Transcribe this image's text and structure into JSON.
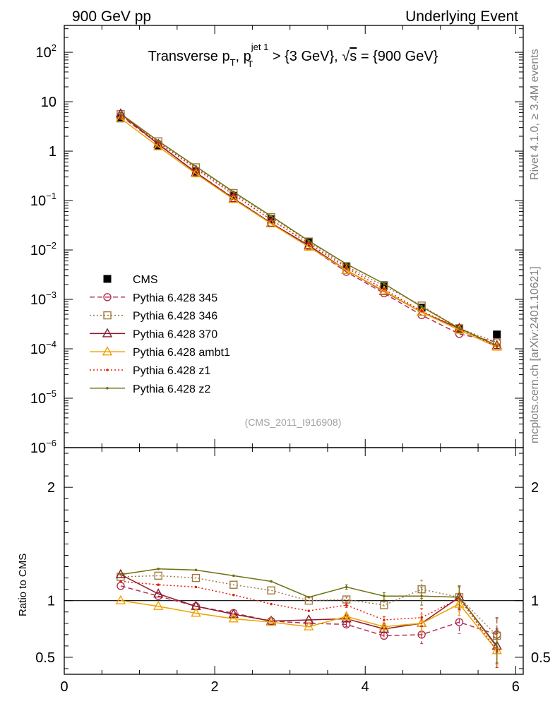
{
  "header": {
    "left": "900 GeV pp",
    "right": "Underlying Event",
    "side_top": "Rivet 4.1.0, ≥ 3.4M events",
    "side_bottom": "mcplots.cern.ch [arXiv:2401.10621]",
    "analysis_id": "(CMS_2011_I916908)"
  },
  "plot_title": {
    "part1": "Transverse p",
    "sub1": "T",
    "part2": ", p",
    "sup2": "jet 1",
    "sub2": "T",
    "part3": " > {3 GeV}, ",
    "sqrt": "√",
    "s": "s",
    "part4": " = {900 GeV}"
  },
  "chart_data": [
    {
      "type": "line",
      "panel": "main",
      "yscale": "log",
      "xlim": [
        0,
        6.1
      ],
      "ylim": [
        1e-06,
        350
      ],
      "y_ticks": [
        {
          "value": 100,
          "mant": "10",
          "exp": "2"
        },
        {
          "value": 10,
          "mant": "10",
          "exp": ""
        },
        {
          "value": 1,
          "mant": "1",
          "exp": ""
        },
        {
          "value": 0.1,
          "mant": "10",
          "exp": "−1"
        },
        {
          "value": 0.01,
          "mant": "10",
          "exp": "−2"
        },
        {
          "value": 0.001,
          "mant": "10",
          "exp": "−3"
        },
        {
          "value": 0.0001,
          "mant": "10",
          "exp": "−4"
        },
        {
          "value": 1e-05,
          "mant": "10",
          "exp": "−5"
        },
        {
          "value": 1e-06,
          "mant": "10",
          "exp": "−6"
        }
      ],
      "x": [
        0.75,
        1.25,
        1.75,
        2.25,
        2.75,
        3.25,
        3.75,
        4.25,
        4.75,
        5.25,
        5.75
      ],
      "series": [
        {
          "name": "CMS",
          "color": "#000000",
          "marker": "filled-square",
          "line": "none",
          "values": [
            4.6,
            1.3,
            0.39,
            0.125,
            0.042,
            0.0148,
            0.0046,
            0.00193,
            0.00068,
            0.00025,
            0.000195
          ]
        },
        {
          "name": "Pythia 6.428 345",
          "color": "#b03050",
          "marker": "open-circle",
          "line": "dashed",
          "values": [
            5.2,
            1.4,
            0.37,
            0.112,
            0.035,
            0.0118,
            0.0036,
            0.00133,
            0.00048,
            0.0002,
            0.000137
          ]
        },
        {
          "name": "Pythia 6.428 346",
          "color": "#a07840",
          "marker": "open-square",
          "line": "dotted",
          "values": [
            5.6,
            1.58,
            0.47,
            0.142,
            0.046,
            0.0148,
            0.0047,
            0.00186,
            0.00075,
            0.00026,
            0.000135
          ]
        },
        {
          "name": "Pythia 6.428 370",
          "color": "#8b1a2a",
          "marker": "open-triangle",
          "line": "solid",
          "values": [
            5.7,
            1.38,
            0.37,
            0.11,
            0.035,
            0.0124,
            0.0039,
            0.00145,
            0.00055,
            0.00026,
            0.000117
          ]
        },
        {
          "name": "Pythia 6.428 ambt1",
          "color": "#f0a000",
          "marker": "open-triangle",
          "line": "solid",
          "values": [
            4.6,
            1.24,
            0.35,
            0.106,
            0.034,
            0.0115,
            0.0039,
            0.00149,
            0.00055,
            0.00024,
            0.000109
          ]
        },
        {
          "name": "Pythia 6.428 z1",
          "color": "#e02010",
          "marker": "dot",
          "line": "dotted",
          "values": [
            5.4,
            1.48,
            0.44,
            0.131,
            0.041,
            0.0135,
            0.0044,
            0.00161,
            0.00058,
            0.00026,
            0.00011
          ]
        },
        {
          "name": "Pythia 6.428 z2",
          "color": "#707010",
          "marker": "dot",
          "line": "solid",
          "values": [
            5.7,
            1.6,
            0.49,
            0.15,
            0.0485,
            0.0153,
            0.0052,
            0.00208,
            0.00071,
            0.00026,
            0.000117
          ]
        }
      ]
    },
    {
      "type": "line",
      "panel": "ratio",
      "ylabel": "Ratio to CMS",
      "xlim": [
        0,
        6.1
      ],
      "ylim": [
        0.35,
        2.35
      ],
      "x_ticks": [
        "0",
        "2",
        "4",
        "6"
      ],
      "y_ticks": [
        "0.5",
        "1",
        "2"
      ],
      "x": [
        0.75,
        1.25,
        1.75,
        2.25,
        2.75,
        3.25,
        3.75,
        4.25,
        4.75,
        5.25,
        5.75
      ],
      "series": [
        {
          "name": "Pythia 6.428 345",
          "values": [
            1.13,
            1.04,
            0.95,
            0.89,
            0.82,
            0.8,
            0.79,
            0.69,
            0.7,
            0.81,
            0.7
          ],
          "errors": [
            0.01,
            0.01,
            0.01,
            0.01,
            0.01,
            0.01,
            0.02,
            0.03,
            0.08,
            0.1,
            0.15
          ]
        },
        {
          "name": "Pythia 6.428 346",
          "values": [
            1.21,
            1.22,
            1.2,
            1.14,
            1.09,
            1.0,
            1.01,
            0.96,
            1.1,
            1.03,
            0.69
          ],
          "errors": [
            0.01,
            0.01,
            0.01,
            0.01,
            0.01,
            0.01,
            0.02,
            0.03,
            0.08,
            0.1,
            0.15
          ]
        },
        {
          "name": "Pythia 6.428 370",
          "values": [
            1.23,
            1.06,
            0.95,
            0.88,
            0.82,
            0.83,
            0.84,
            0.75,
            0.8,
            1.03,
            0.6
          ],
          "errors": [
            0.01,
            0.01,
            0.01,
            0.01,
            0.01,
            0.01,
            0.02,
            0.03,
            0.08,
            0.1,
            0.15
          ]
        },
        {
          "name": "Pythia 6.428 ambt1",
          "values": [
            1.0,
            0.95,
            0.89,
            0.84,
            0.81,
            0.77,
            0.86,
            0.77,
            0.8,
            0.97,
            0.56
          ],
          "errors": [
            0.01,
            0.01,
            0.01,
            0.01,
            0.01,
            0.01,
            0.02,
            0.03,
            0.08,
            0.1,
            0.15
          ]
        },
        {
          "name": "Pythia 6.428 z1",
          "values": [
            1.17,
            1.14,
            1.12,
            1.05,
            0.97,
            0.91,
            0.96,
            0.83,
            0.85,
            1.02,
            0.56
          ],
          "errors": [
            0.01,
            0.01,
            0.01,
            0.01,
            0.01,
            0.01,
            0.02,
            0.03,
            0.08,
            0.1,
            0.15
          ]
        },
        {
          "name": "Pythia 6.428 z2",
          "values": [
            1.23,
            1.28,
            1.27,
            1.22,
            1.17,
            1.03,
            1.12,
            1.04,
            1.04,
            1.03,
            0.59
          ],
          "errors": [
            0.01,
            0.01,
            0.01,
            0.01,
            0.01,
            0.01,
            0.02,
            0.03,
            0.08,
            0.1,
            0.15
          ]
        }
      ]
    }
  ]
}
